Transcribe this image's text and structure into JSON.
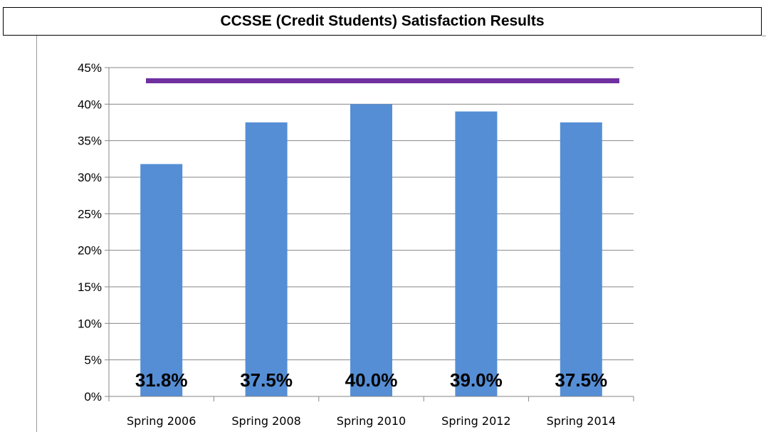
{
  "chart_data": {
    "type": "bar",
    "title": "CCSSE (Credit Students) Satisfaction Results",
    "categories": [
      "Spring 2006",
      "Spring 2008",
      "Spring 2010",
      "Spring 2012",
      "Spring 2014"
    ],
    "values": [
      31.8,
      37.5,
      40.0,
      39.0,
      37.5
    ],
    "data_labels": [
      "31.8%",
      "37.5%",
      "40.0%",
      "39.0%",
      "37.5%"
    ],
    "ylim": [
      0,
      45
    ],
    "yticks": [
      0,
      5,
      10,
      15,
      20,
      25,
      30,
      35,
      40,
      45
    ],
    "ytick_labels": [
      "0%",
      "5%",
      "10%",
      "15%",
      "20%",
      "25%",
      "30%",
      "35%",
      "40%",
      "45%"
    ],
    "reference_line": {
      "value": 43.2,
      "color": "#7030a0"
    },
    "bar_color": "#558ed5",
    "grid": true,
    "legend": "none"
  }
}
